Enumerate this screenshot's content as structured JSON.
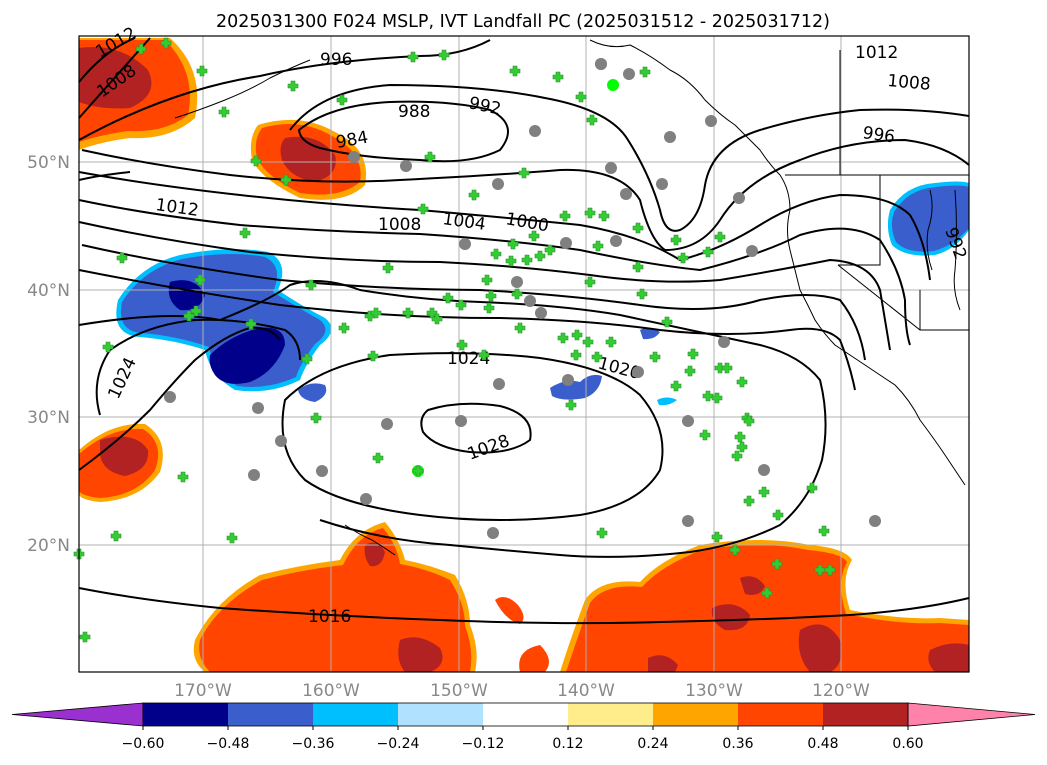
{
  "title": "2025031300 F024 MSLP, IVT Landfall PC (2025031512 - 2025031712)",
  "lat_labels": [
    "50°N",
    "40°N",
    "30°N",
    "20°N"
  ],
  "lon_labels": [
    "170°W",
    "160°W",
    "150°W",
    "140°W",
    "130°W",
    "120°W"
  ],
  "isobar_labels": [
    "1012",
    "1008",
    "996",
    "988",
    "992",
    "984",
    "1012",
    "1008",
    "1004",
    "1000",
    "1012",
    "1008",
    "996",
    "992",
    "1024",
    "1024",
    "1020",
    "1028",
    "1016"
  ],
  "colorbar": {
    "tick_labels": [
      "−0.60",
      "−0.48",
      "−0.36",
      "−0.24",
      "−0.12",
      "0.12",
      "0.24",
      "0.36",
      "0.48",
      "0.60"
    ],
    "colors": [
      "#9b30d0",
      "#00008b",
      "#3a5fcd",
      "#00bfff",
      "#b0e2ff",
      "#ffffff",
      "#ffec8b",
      "#ffa500",
      "#ff4500",
      "#b22222",
      "#ff82ab"
    ]
  },
  "colors": {
    "marker_circle": "#808080",
    "marker_plus": "#32cd32",
    "isobar": "#000000"
  }
}
